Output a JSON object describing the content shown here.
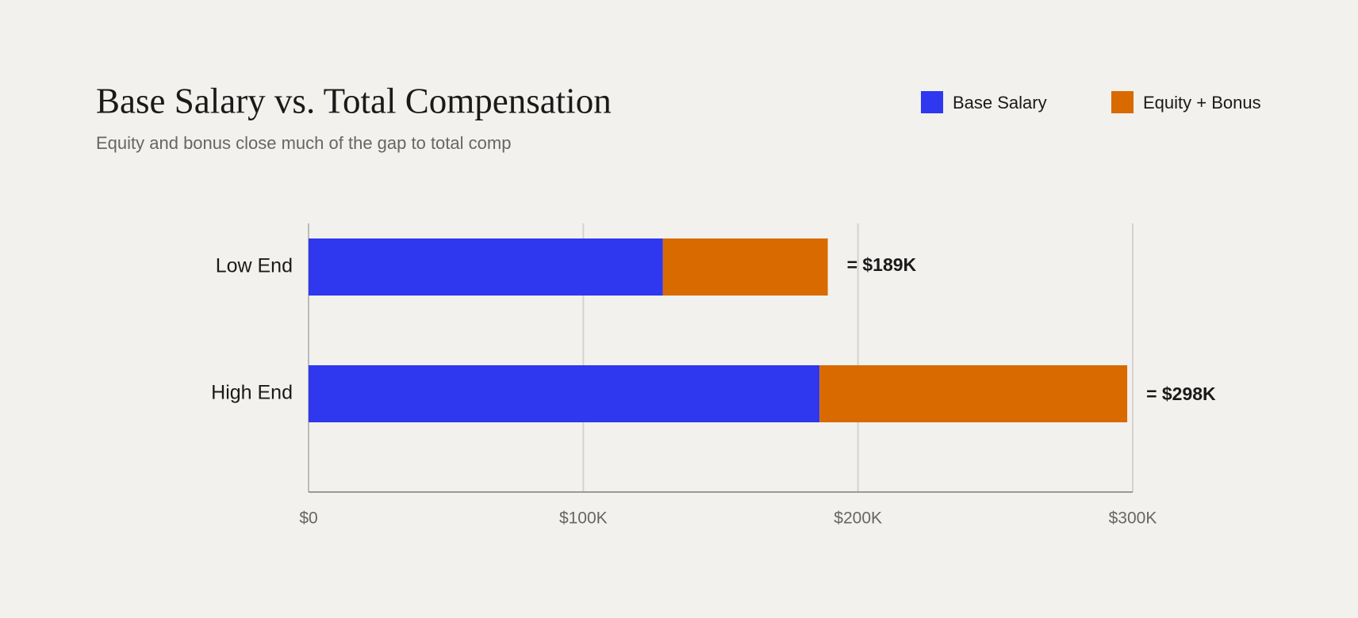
{
  "chart_data": {
    "type": "stacked-barh",
    "title": "Base Salary vs. Total Compensation",
    "subtitle": "Equity and bonus close much of the gap to total comp",
    "categories": [
      "Low End",
      "High End"
    ],
    "series": [
      {
        "name": "Base Salary",
        "color": "#2f37ef",
        "values": [
          129000,
          186000
        ]
      },
      {
        "name": "Equity + Bonus",
        "color": "#d86a00",
        "values": [
          60000,
          112000
        ]
      }
    ],
    "totals": [
      189000,
      298000
    ],
    "total_labels": [
      "= $189K",
      "= $298K"
    ],
    "xlim": [
      0,
      300000
    ],
    "xticks": [
      {
        "value": 0,
        "label": "$0"
      },
      {
        "value": 100000,
        "label": "$100K"
      },
      {
        "value": 200000,
        "label": "$200K"
      },
      {
        "value": 300000,
        "label": "$300K"
      }
    ],
    "grid": true,
    "legend": "top-right"
  }
}
